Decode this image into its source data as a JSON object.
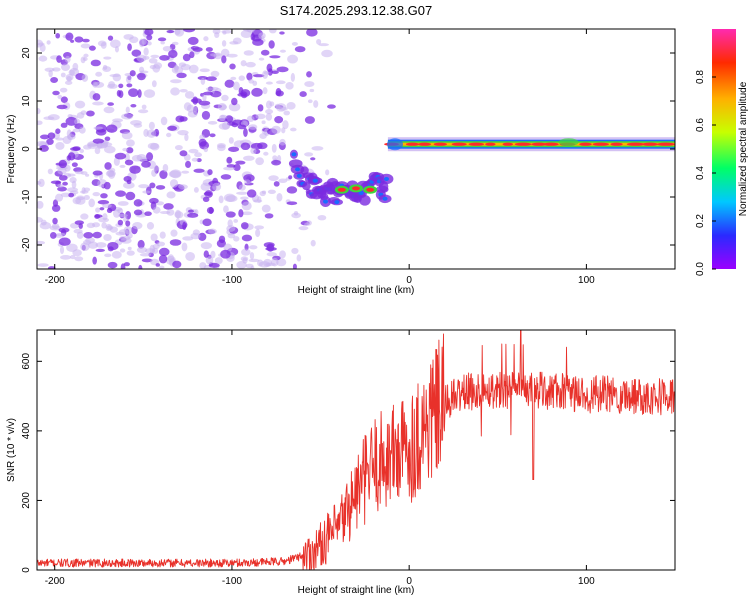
{
  "title": "S174.2025.293.12.38.G07",
  "colors": {
    "snr_line": "#e8312a",
    "axis": "#000000",
    "scatter_purple": "#7a2ae0",
    "scatter_light": "#c9b3f0",
    "band_core": "#ff2a2a",
    "band_mid": "#3fd43f",
    "band_edge": "#1a6bff"
  },
  "colorbar": {
    "label": "Normalized spectral amplitude",
    "ticks": [
      "0.0",
      "0.2",
      "0.4",
      "0.6",
      "0.8"
    ],
    "range": [
      0,
      1
    ],
    "stops": [
      "#9b00ff",
      "#2a2aff",
      "#00c8ff",
      "#00ff66",
      "#c8ff00",
      "#ffb000",
      "#ff2a00",
      "#ff2ab0"
    ]
  },
  "chart_data": [
    {
      "type": "heatmap",
      "name": "spectrogram",
      "xlabel": "Height of straight line (km)",
      "ylabel": "Frequency (Hz)",
      "xlim": [
        -210,
        150
      ],
      "ylim": [
        -25,
        25
      ],
      "xticks": [
        -200,
        -100,
        0,
        100
      ],
      "xtick_labels": [
        "-200",
        "-100",
        "0",
        "100"
      ],
      "yticks": [
        -20,
        -10,
        0,
        10,
        20
      ],
      "ytick_labels": [
        "-20",
        "-10",
        "0",
        "10",
        "20"
      ],
      "noise_region": {
        "x": [
          -210,
          -60
        ],
        "y": [
          -25,
          25
        ]
      },
      "descending_track": [
        {
          "x": -65,
          "y": -3
        },
        {
          "x": -55,
          "y": -8
        },
        {
          "x": -48,
          "y": -10
        },
        {
          "x": -40,
          "y": -9
        },
        {
          "x": -30,
          "y": -10
        },
        {
          "x": -20,
          "y": -8
        },
        {
          "x": -12,
          "y": -8
        }
      ],
      "flat_band": {
        "x_start": -12,
        "x_end": 150,
        "frequency": 1
      }
    },
    {
      "type": "line",
      "name": "snr",
      "xlabel": "Height of straight line (km)",
      "ylabel": "SNR (10 * v/v)",
      "xlim": [
        -210,
        150
      ],
      "ylim": [
        0,
        690
      ],
      "xticks": [
        -200,
        -100,
        0,
        100
      ],
      "xtick_labels": [
        "-200",
        "-100",
        "0",
        "100"
      ],
      "yticks": [
        0,
        200,
        400,
        600
      ],
      "ytick_labels": [
        "0",
        "200",
        "400",
        "600"
      ],
      "trend": [
        {
          "x": -210,
          "y": 20
        },
        {
          "x": -100,
          "y": 20
        },
        {
          "x": -70,
          "y": 25
        },
        {
          "x": -55,
          "y": 50
        },
        {
          "x": -40,
          "y": 120
        },
        {
          "x": -30,
          "y": 220
        },
        {
          "x": -20,
          "y": 300
        },
        {
          "x": -10,
          "y": 330
        },
        {
          "x": 0,
          "y": 350
        },
        {
          "x": 10,
          "y": 420
        },
        {
          "x": 20,
          "y": 480
        },
        {
          "x": 30,
          "y": 510
        },
        {
          "x": 50,
          "y": 520
        },
        {
          "x": 80,
          "y": 515
        },
        {
          "x": 100,
          "y": 505
        },
        {
          "x": 150,
          "y": 500
        }
      ],
      "peak": {
        "x": 63,
        "y": 690
      }
    }
  ]
}
